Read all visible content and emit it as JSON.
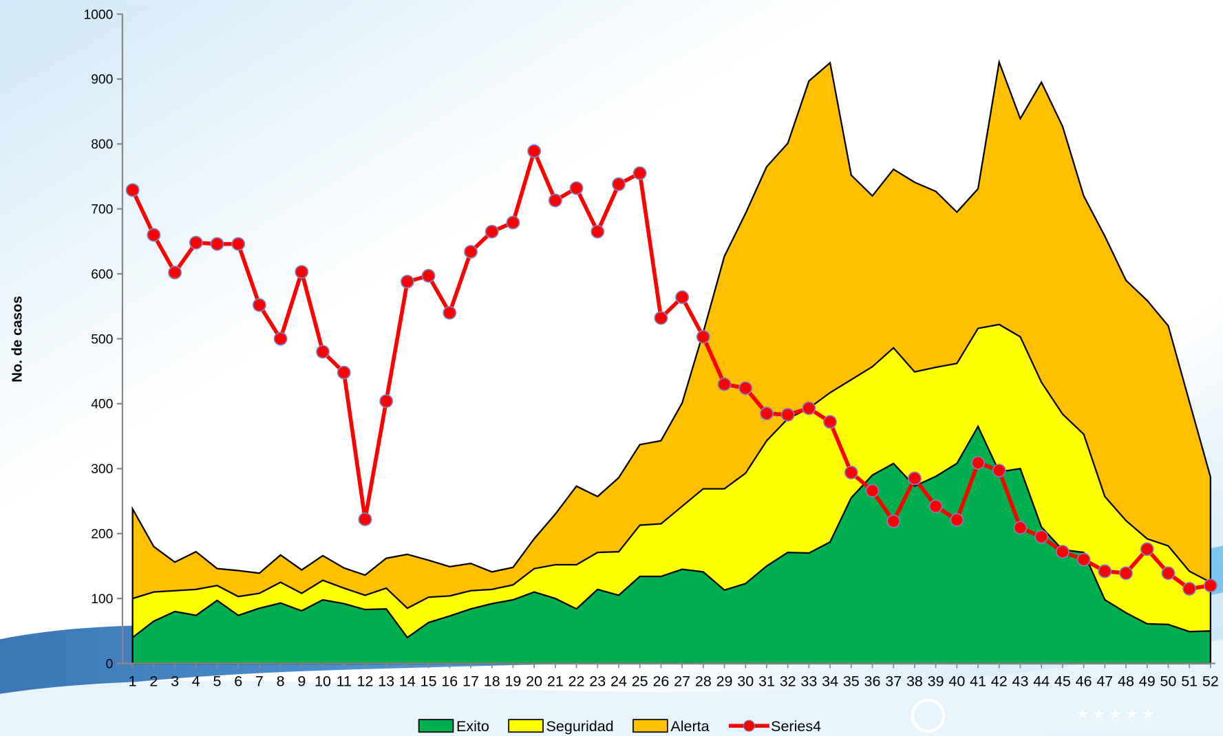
{
  "chart_data": {
    "type": "area-line",
    "y_label": "No. de casos",
    "categories": [
      "1",
      "2",
      "3",
      "4",
      "5",
      "6",
      "7",
      "8",
      "9",
      "10",
      "11",
      "12",
      "13",
      "14",
      "15",
      "16",
      "17",
      "18",
      "19",
      "20",
      "21",
      "22",
      "23",
      "24",
      "25",
      "26",
      "27",
      "28",
      "29",
      "30",
      "31",
      "32",
      "33",
      "34",
      "35",
      "36",
      "37",
      "38",
      "39",
      "40",
      "41",
      "42",
      "43",
      "44",
      "45",
      "46",
      "47",
      "48",
      "49",
      "50",
      "51",
      "52"
    ],
    "ylim": [
      0,
      1000
    ],
    "yticks": [
      0,
      100,
      200,
      300,
      400,
      500,
      600,
      700,
      800,
      900,
      1000
    ],
    "series": [
      {
        "name": "Alerta",
        "kind": "area",
        "color": "#ffc000",
        "values": [
          238,
          180,
          156,
          172,
          146,
          143,
          139,
          167,
          144,
          166,
          147,
          136,
          162,
          168,
          159,
          149,
          154,
          141,
          148,
          192,
          230,
          273,
          257,
          286,
          337,
          343,
          401,
          510,
          627,
          693,
          765,
          801,
          897,
          925,
          752,
          720,
          761,
          741,
          727,
          695,
          731,
          926,
          839,
          895,
          827,
          720,
          658,
          590,
          559,
          520,
          403,
          287
        ]
      },
      {
        "name": "Seguridad",
        "kind": "area",
        "color": "#ffff00",
        "values": [
          100,
          110,
          112,
          114,
          120,
          103,
          108,
          125,
          108,
          128,
          116,
          105,
          116,
          85,
          102,
          104,
          112,
          114,
          121,
          146,
          152,
          152,
          171,
          172,
          213,
          215,
          242,
          269,
          269,
          293,
          343,
          377,
          393,
          417,
          437,
          457,
          486,
          449,
          456,
          462,
          516,
          522,
          503,
          433,
          384,
          353,
          257,
          220,
          192,
          181,
          142,
          125
        ]
      },
      {
        "name": "Exito",
        "kind": "area",
        "color": "#00b050",
        "values": [
          40,
          65,
          80,
          74,
          97,
          74,
          85,
          93,
          81,
          98,
          92,
          83,
          84,
          40,
          63,
          73,
          84,
          92,
          98,
          110,
          100,
          84,
          114,
          105,
          134,
          134,
          145,
          141,
          113,
          123,
          150,
          171,
          170,
          187,
          255,
          290,
          308,
          273,
          288,
          308,
          365,
          295,
          300,
          210,
          175,
          171,
          98,
          78,
          61,
          60,
          49,
          50
        ]
      },
      {
        "name": "Series4",
        "kind": "line",
        "color": "#ff0000",
        "values": [
          729,
          660,
          602,
          648,
          646,
          646,
          552,
          500,
          603,
          480,
          448,
          222,
          404,
          588,
          597,
          540,
          634,
          665,
          679,
          789,
          713,
          732,
          665,
          738,
          755,
          532,
          564,
          503,
          430,
          424,
          385,
          383,
          393,
          372,
          294,
          266,
          219,
          285,
          242,
          221,
          309,
          297,
          209,
          195,
          172,
          160,
          142,
          139,
          176,
          139,
          115,
          120
        ]
      }
    ],
    "legend_order": [
      2,
      1,
      0,
      3
    ]
  }
}
